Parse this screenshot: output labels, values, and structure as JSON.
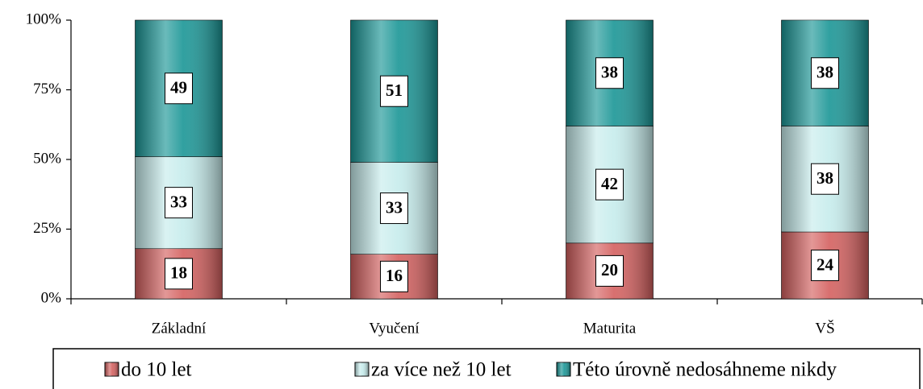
{
  "chart_data": {
    "type": "stacked_bar",
    "categories": [
      "Základní",
      "Vyučení",
      "Maturita",
      "VŠ"
    ],
    "series": [
      {
        "name": "do 10 let",
        "color": "#d4605f",
        "values": [
          18,
          16,
          20,
          24
        ]
      },
      {
        "name": "za více než 10 let",
        "color": "#c6ecec",
        "values": [
          33,
          33,
          42,
          38
        ]
      },
      {
        "name": "Této úrovně nedosáhneme nikdy",
        "color": "#1a9696",
        "values": [
          49,
          51,
          38,
          38
        ]
      }
    ],
    "ylim": [
      0,
      100
    ],
    "yticks": [
      {
        "value": 0,
        "label": "0%"
      },
      {
        "value": 25,
        "label": "25%"
      },
      {
        "value": 50,
        "label": "50%"
      },
      {
        "value": 75,
        "label": "75%"
      },
      {
        "value": 100,
        "label": "100%"
      }
    ],
    "legend": "bottom"
  }
}
